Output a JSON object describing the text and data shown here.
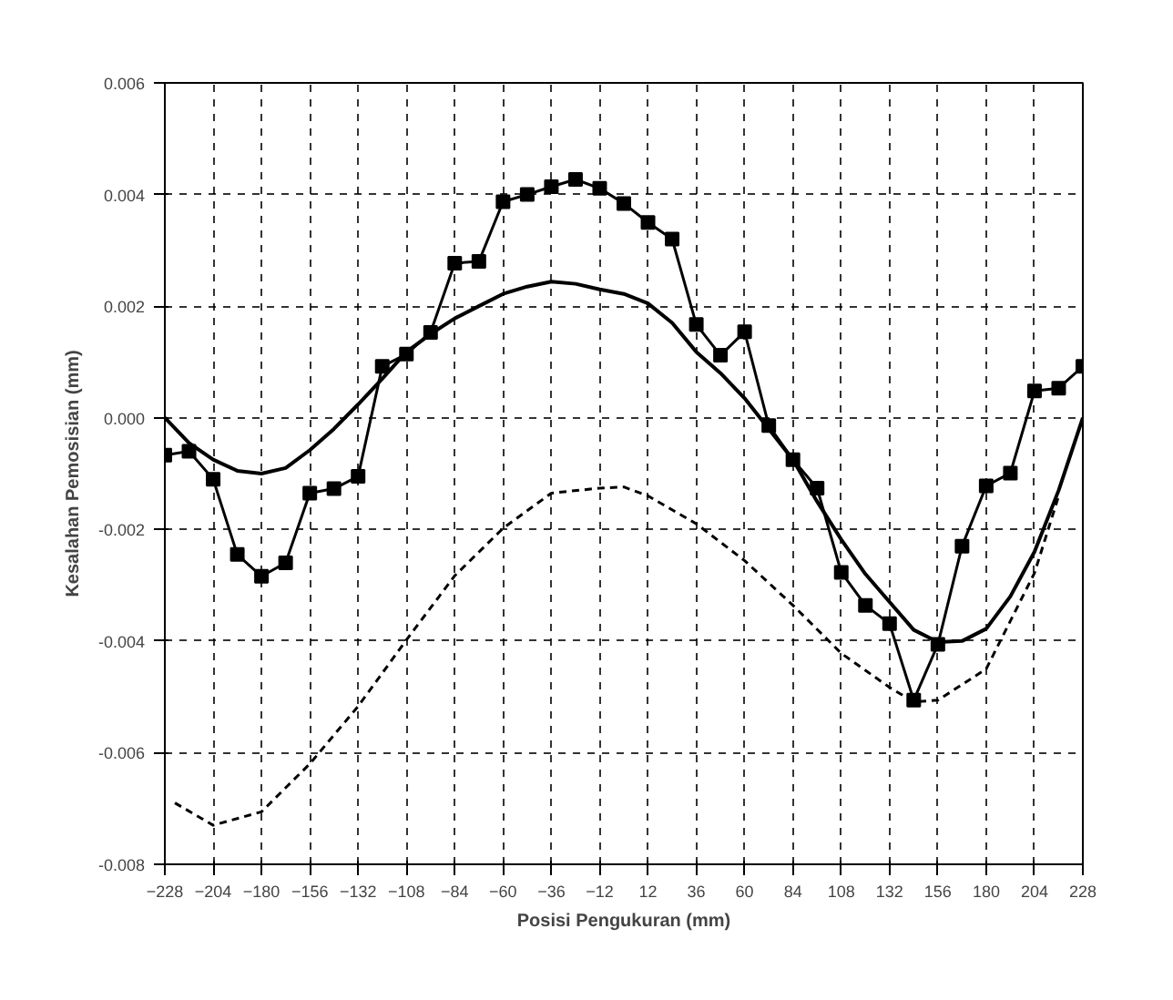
{
  "chart_data": {
    "type": "line",
    "xlabel": "Posisi Pengukuran (mm)",
    "ylabel": "Kesalahan Pemosisian (mm)",
    "xlim": [
      -228,
      228
    ],
    "xticks": [
      -228,
      -204,
      -180,
      -156,
      -132,
      -108,
      -84,
      -60,
      -36,
      -12,
      12,
      36,
      60,
      84,
      108,
      132,
      156,
      180,
      204,
      228
    ],
    "ylim": [
      -0.008,
      0.006
    ],
    "yticks": [
      {
        "value": -0.008,
        "label": "-0.008"
      },
      {
        "value": -0.006,
        "label": "-0.006"
      },
      {
        "value": -0.004,
        "label": "-0.004"
      },
      {
        "value": -0.002,
        "label": "-0.002"
      },
      {
        "value": 0,
        "label": "0.000"
      },
      {
        "value": 0.002,
        "label": "0.002"
      },
      {
        "value": 0.004,
        "label": "0.004"
      },
      {
        "value": 0.006,
        "label": "0.006"
      }
    ],
    "grid": true,
    "series": [
      {
        "color": "#000000",
        "marker": "square",
        "line_style": "solid",
        "x": [
          -228,
          -216,
          -204,
          -192,
          -180,
          -168,
          -156,
          -144,
          -132,
          -120,
          -108,
          -96,
          -84,
          -72,
          -60,
          -48,
          -36,
          -24,
          -12,
          0,
          12,
          24,
          36,
          48,
          60,
          72,
          84,
          96,
          108,
          120,
          132,
          144,
          156,
          168,
          180,
          192,
          204,
          216,
          228
        ],
        "values": [
          -0.00067,
          -0.0006,
          -0.0011,
          -0.00245,
          -0.00284,
          -0.0026,
          -0.00135,
          -0.00127,
          -0.00105,
          0.00092,
          0.00114,
          0.00153,
          0.00277,
          0.0028,
          0.00387,
          0.004,
          0.00414,
          0.00427,
          0.00411,
          0.00384,
          0.0035,
          0.0032,
          0.00167,
          0.00112,
          0.00154,
          -0.00014,
          -0.00075,
          -0.00126,
          -0.00277,
          -0.00336,
          -0.00369,
          -0.00506,
          -0.00406,
          -0.0023,
          -0.00122,
          -0.00099,
          0.00048,
          0.00053,
          0.00092
        ]
      },
      {
        "color": "#000000",
        "marker": "none",
        "line_style": "solid",
        "x": [
          -228,
          -216,
          -204,
          -192,
          -180,
          -168,
          -156,
          -144,
          -132,
          -120,
          -108,
          -96,
          -84,
          -72,
          -60,
          -48,
          -36,
          -24,
          -12,
          0,
          12,
          24,
          36,
          48,
          60,
          72,
          84,
          96,
          108,
          120,
          132,
          144,
          156,
          168,
          180,
          192,
          204,
          216,
          228
        ],
        "values": [
          0,
          -0.00045,
          -0.00075,
          -0.00095,
          -0.001,
          -0.0009,
          -0.00058,
          -0.0002,
          0.00024,
          0.0007,
          0.00118,
          0.0015,
          0.00178,
          0.002,
          0.00222,
          0.00235,
          0.00244,
          0.0024,
          0.0023,
          0.00222,
          0.00205,
          0.0017,
          0.00118,
          0.0008,
          0.00035,
          -0.0002,
          -0.00075,
          -0.0015,
          -0.00218,
          -0.0028,
          -0.0033,
          -0.0038,
          -0.00402,
          -0.004,
          -0.00378,
          -0.0032,
          -0.0024,
          -0.0013,
          0
        ]
      },
      {
        "color": "#000000",
        "marker": "none",
        "line_style": "dashed",
        "x": [
          -223,
          -204,
          -180,
          -156,
          -132,
          -108,
          -84,
          -60,
          -36,
          -12,
          0,
          12,
          36,
          60,
          84,
          108,
          132,
          144,
          156,
          180,
          204,
          216
        ],
        "values": [
          -0.0069,
          -0.0073,
          -0.00706,
          -0.0062,
          -0.00517,
          -0.00398,
          -0.00283,
          -0.00198,
          -0.00135,
          -0.00126,
          -0.00124,
          -0.0014,
          -0.0019,
          -0.00256,
          -0.00336,
          -0.00422,
          -0.00483,
          -0.00509,
          -0.00506,
          -0.0045,
          -0.00278,
          -0.0014
        ]
      }
    ]
  }
}
